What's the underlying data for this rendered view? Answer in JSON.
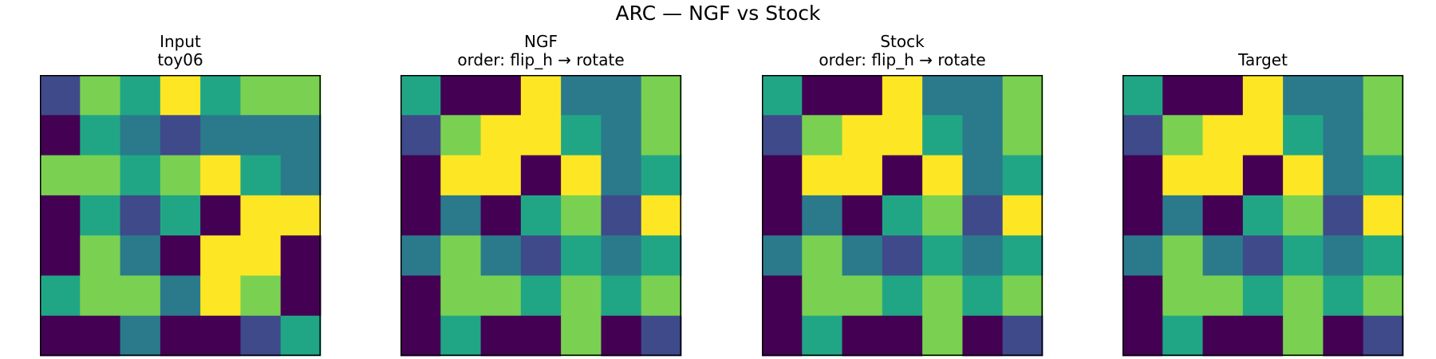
{
  "suptitle": "ARC — NGF vs Stock",
  "palette": {
    "0": "#440154",
    "1": "#3e4a89",
    "2": "#2a7a8c",
    "3": "#21a685",
    "4": "#7ad151",
    "5": "#fde725"
  },
  "chart_data": [
    {
      "type": "heatmap",
      "title": "Input",
      "subtitle": "toy06",
      "grid": [
        [
          1,
          4,
          3,
          5,
          3,
          4,
          4
        ],
        [
          0,
          3,
          2,
          1,
          2,
          2,
          2
        ],
        [
          4,
          4,
          3,
          4,
          5,
          3,
          2
        ],
        [
          0,
          3,
          1,
          3,
          0,
          5,
          5
        ],
        [
          0,
          4,
          2,
          0,
          5,
          5,
          0
        ],
        [
          3,
          4,
          4,
          2,
          5,
          4,
          0
        ],
        [
          0,
          0,
          2,
          0,
          0,
          1,
          3
        ]
      ]
    },
    {
      "type": "heatmap",
      "title": "NGF",
      "subtitle": "order: flip_h → rotate",
      "grid": [
        [
          3,
          0,
          0,
          5,
          2,
          2,
          4
        ],
        [
          1,
          4,
          5,
          5,
          3,
          2,
          4
        ],
        [
          0,
          5,
          5,
          0,
          5,
          2,
          3
        ],
        [
          0,
          2,
          0,
          3,
          4,
          1,
          5
        ],
        [
          2,
          4,
          2,
          1,
          3,
          2,
          3
        ],
        [
          0,
          4,
          4,
          3,
          4,
          3,
          4
        ],
        [
          0,
          3,
          0,
          0,
          4,
          0,
          1
        ]
      ]
    },
    {
      "type": "heatmap",
      "title": "Stock",
      "subtitle": "order: flip_h → rotate",
      "grid": [
        [
          3,
          0,
          0,
          5,
          2,
          2,
          4
        ],
        [
          1,
          4,
          5,
          5,
          3,
          2,
          4
        ],
        [
          0,
          5,
          5,
          0,
          5,
          2,
          3
        ],
        [
          0,
          2,
          0,
          3,
          4,
          1,
          5
        ],
        [
          2,
          4,
          2,
          1,
          3,
          2,
          3
        ],
        [
          0,
          4,
          4,
          3,
          4,
          3,
          4
        ],
        [
          0,
          3,
          0,
          0,
          4,
          0,
          1
        ]
      ]
    },
    {
      "type": "heatmap",
      "title": "Target",
      "subtitle": "",
      "grid": [
        [
          3,
          0,
          0,
          5,
          2,
          2,
          4
        ],
        [
          1,
          4,
          5,
          5,
          3,
          2,
          4
        ],
        [
          0,
          5,
          5,
          0,
          5,
          2,
          3
        ],
        [
          0,
          2,
          0,
          3,
          4,
          1,
          5
        ],
        [
          2,
          4,
          2,
          1,
          3,
          2,
          3
        ],
        [
          0,
          4,
          4,
          3,
          4,
          3,
          4
        ],
        [
          0,
          3,
          0,
          0,
          4,
          0,
          1
        ]
      ]
    }
  ]
}
